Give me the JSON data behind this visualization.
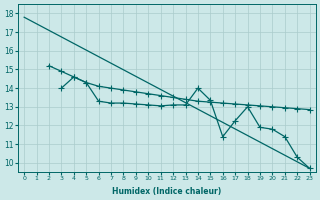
{
  "xlabel": "Humidex (Indice chaleur)",
  "background_color": "#cce8e8",
  "grid_color": "#aacccc",
  "line_color": "#006666",
  "xlim": [
    -0.5,
    23.5
  ],
  "ylim": [
    9.5,
    18.5
  ],
  "xticks": [
    0,
    1,
    2,
    3,
    4,
    5,
    6,
    7,
    8,
    9,
    10,
    11,
    12,
    13,
    14,
    15,
    16,
    17,
    18,
    19,
    20,
    21,
    22,
    23
  ],
  "yticks": [
    10,
    11,
    12,
    13,
    14,
    15,
    16,
    17,
    18
  ],
  "line1_x": [
    0,
    23
  ],
  "line1_y": [
    17.8,
    9.7
  ],
  "line2_x": [
    2,
    3,
    4,
    5,
    6,
    7,
    8,
    9,
    10,
    11,
    12,
    13,
    14,
    15,
    16,
    17,
    18,
    19,
    20,
    21,
    22,
    23
  ],
  "line2_y": [
    15.2,
    14.9,
    14.6,
    14.3,
    14.1,
    14.0,
    13.9,
    13.8,
    13.7,
    13.6,
    13.5,
    13.4,
    13.3,
    13.25,
    13.2,
    13.15,
    13.1,
    13.05,
    13.0,
    12.95,
    12.9,
    12.85
  ],
  "line3_x": [
    3,
    4,
    5,
    6,
    7,
    8,
    9,
    10,
    11,
    12,
    13,
    14,
    15,
    16,
    17,
    18,
    19,
    20,
    21,
    22,
    23
  ],
  "line3_y": [
    14.0,
    14.6,
    14.3,
    13.3,
    13.2,
    13.2,
    13.15,
    13.1,
    13.05,
    13.1,
    13.1,
    14.0,
    13.35,
    11.4,
    12.25,
    13.0,
    11.9,
    11.8,
    11.4,
    10.3,
    9.7
  ],
  "markersize": 2.5,
  "linewidth": 0.9
}
